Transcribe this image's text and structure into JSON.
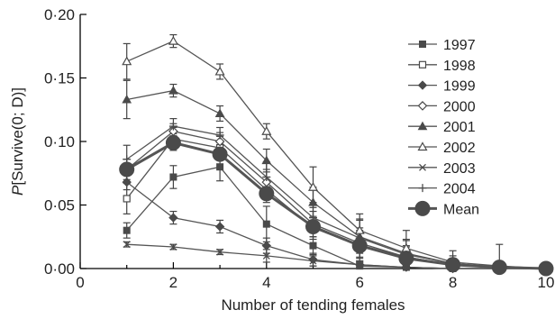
{
  "chart_data": {
    "type": "line",
    "xlabel": "Number of tending females",
    "ylabel_italic": "P",
    "ylabel_rest": "[Survive(0; D)]",
    "xlim": [
      0,
      10
    ],
    "ylim": [
      0,
      0.2
    ],
    "x_ticks": [
      {
        "value": 0,
        "label": "0"
      },
      {
        "value": 2,
        "label": "2"
      },
      {
        "value": 4,
        "label": "4"
      },
      {
        "value": 6,
        "label": "6"
      },
      {
        "value": 8,
        "label": "8"
      },
      {
        "value": 10,
        "label": "10"
      }
    ],
    "y_ticks": [
      {
        "value": 0,
        "label": "0·00"
      },
      {
        "value": 0.05,
        "label": "0·05"
      },
      {
        "value": 0.1,
        "label": "0·10"
      },
      {
        "value": 0.15,
        "label": "0·15"
      },
      {
        "value": 0.2,
        "label": "0·20"
      }
    ],
    "grid": false,
    "legend_position": "right",
    "series": [
      {
        "name": "1997",
        "marker": "square-filled",
        "x": [
          1,
          2,
          3,
          4,
          5,
          6,
          7,
          8,
          9,
          10
        ],
        "y": [
          0.03,
          0.072,
          0.08,
          0.035,
          0.018,
          0.002,
          0.001,
          0.0,
          0.0,
          0.0
        ],
        "err": [
          0.006,
          0.009,
          0.011,
          0.014,
          0.007,
          0.003,
          0.002,
          0.0,
          0.0,
          0.0
        ]
      },
      {
        "name": "1998",
        "marker": "square-open",
        "x": [
          1,
          2,
          3,
          4,
          5,
          6,
          7,
          8,
          9,
          10
        ],
        "y": [
          0.055,
          0.102,
          0.095,
          0.062,
          0.032,
          0.018,
          0.009,
          0.003,
          0.001,
          0.0
        ],
        "err": [
          0.012,
          0.009,
          0.009,
          0.01,
          0.009,
          0.012,
          0.008,
          0.004,
          0.002,
          0.0
        ]
      },
      {
        "name": "1999",
        "marker": "diamond-filled",
        "x": [
          1,
          2,
          3,
          4,
          5,
          6,
          7,
          8,
          9,
          10
        ],
        "y": [
          0.068,
          0.04,
          0.033,
          0.018,
          0.007,
          0.003,
          0.001,
          0.0,
          0.0,
          0.0
        ],
        "err": [
          0.006,
          0.005,
          0.005,
          0.006,
          0.005,
          0.003,
          0.001,
          0.0,
          0.0,
          0.0
        ]
      },
      {
        "name": "2000",
        "marker": "diamond-open",
        "x": [
          1,
          2,
          3,
          4,
          5,
          6,
          7,
          8,
          9,
          10
        ],
        "y": [
          0.078,
          0.108,
          0.1,
          0.068,
          0.035,
          0.02,
          0.009,
          0.003,
          0.001,
          0.0
        ],
        "err": [
          0.008,
          0.006,
          0.007,
          0.01,
          0.01,
          0.012,
          0.009,
          0.004,
          0.002,
          0.0
        ]
      },
      {
        "name": "2001",
        "marker": "triangle-filled",
        "x": [
          1,
          2,
          3,
          4,
          5,
          6,
          7,
          8,
          9,
          10
        ],
        "y": [
          0.133,
          0.14,
          0.122,
          0.085,
          0.052,
          0.025,
          0.012,
          0.004,
          0.001,
          0.0
        ],
        "err": [
          0.015,
          0.005,
          0.006,
          0.009,
          0.012,
          0.013,
          0.01,
          0.004,
          0.002,
          0.0
        ]
      },
      {
        "name": "2002",
        "marker": "triangle-open",
        "x": [
          1,
          2,
          3,
          4,
          5,
          6,
          7,
          8,
          9,
          10
        ],
        "y": [
          0.163,
          0.179,
          0.155,
          0.108,
          0.064,
          0.03,
          0.016,
          0.005,
          0.002,
          0.0
        ],
        "err": [
          0.014,
          0.005,
          0.006,
          0.006,
          0.016,
          0.013,
          0.014,
          0.009,
          0.017,
          0.003
        ]
      },
      {
        "name": "2003",
        "marker": "x",
        "x": [
          1,
          2,
          3,
          4,
          5,
          6,
          7,
          8,
          9,
          10
        ],
        "y": [
          0.019,
          0.017,
          0.013,
          0.01,
          0.006,
          0.003,
          0.001,
          0.0,
          0.0,
          0.0
        ],
        "err": [
          0.002,
          0.002,
          0.002,
          0.005,
          0.004,
          0.002,
          0.001,
          0.0,
          0.0,
          0.0
        ]
      },
      {
        "name": "2004",
        "marker": "plus",
        "x": [
          1,
          2,
          3,
          4,
          5,
          6,
          7,
          8,
          9,
          10
        ],
        "y": [
          0.086,
          0.112,
          0.105,
          0.072,
          0.04,
          0.024,
          0.011,
          0.004,
          0.001,
          0.0
        ],
        "err": [
          0.011,
          0.006,
          0.006,
          0.012,
          0.012,
          0.015,
          0.012,
          0.006,
          0.003,
          0.0
        ]
      },
      {
        "name": "Mean",
        "marker": "circle-large",
        "x": [
          1,
          2,
          3,
          4,
          5,
          6,
          7,
          8,
          9,
          10
        ],
        "y": [
          0.078,
          0.099,
          0.09,
          0.059,
          0.033,
          0.018,
          0.008,
          0.003,
          0.001,
          0.0
        ],
        "err": [
          0,
          0,
          0,
          0,
          0,
          0,
          0,
          0,
          0,
          0
        ]
      }
    ]
  },
  "colors": {
    "axis": "#000000",
    "series": "#555555",
    "marker": "#4a4a4a",
    "text": "#222222"
  }
}
